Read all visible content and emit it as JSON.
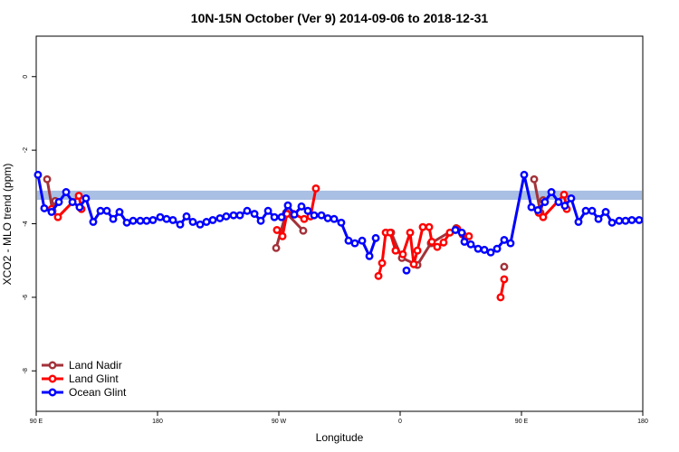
{
  "chart_data": {
    "type": "line",
    "title": "10N-15N October (Ver 9)   2014-09-06 to 2018-12-31",
    "x_label": "Longitude",
    "y_label": "XCO2 - MLO trend (ppm)",
    "xlim": [
      90,
      540
    ],
    "ylim": [
      -9.1,
      1.1
    ],
    "xticks": [
      {
        "value": 90,
        "label": "90 E"
      },
      180,
      {
        "value": 270,
        "label": "90 W"
      },
      {
        "value": 360,
        "label": "0"
      },
      {
        "value": 450,
        "label": "90 E"
      },
      180
    ],
    "yticks": [
      -8,
      -6,
      -4,
      -2,
      0
    ],
    "reference_band": {
      "values": [
        -3.35,
        -3.1
      ],
      "color": "#a9bfe3"
    },
    "legend": "bottom-left",
    "series": [
      {
        "name": "Land Nadir",
        "color": "#a3323a",
        "x": [
          98.1,
          102.1,
          104.1,
          null,
          268,
          275.4,
          288.1,
          null,
          353.3,
          361.3,
          372.8,
          382.8,
          401.6,
          null,
          437.2,
          null,
          459.4,
          464.1,
          466.1
        ],
        "values": [
          -2.79,
          -3.65,
          -3.38,
          null,
          -4.66,
          -3.7,
          -4.19,
          null,
          -4.24,
          -4.93,
          -5.12,
          -4.53,
          -4.12,
          null,
          -5.17,
          null,
          -2.79,
          -3.7,
          -3.36
        ]
      },
      {
        "name": "Land Glint",
        "color": "#ff0000",
        "x": [
          101.4,
          106.1,
          121.6,
          123.6,
          null,
          268.6,
          272.7,
          276,
          280.8,
          288.8,
          293.5,
          297.5,
          null,
          343.9,
          346.6,
          349.3,
          352.6,
          356.6,
          362,
          367.4,
          370.1,
          372.8,
          376.8,
          381.5,
          383.5,
          387.5,
          392.2,
          396.9,
          402.3,
          406.3,
          411,
          null,
          434.5,
          437.2,
          null,
          462.8,
          466.1,
          481.6,
          483.6
        ],
        "values": [
          -3.6,
          -3.82,
          -3.24,
          -3.6,
          null,
          -4.17,
          -4.34,
          -3.73,
          -3.73,
          -3.87,
          -3.8,
          -3.04,
          null,
          -5.42,
          -5.07,
          -4.24,
          -4.24,
          -4.73,
          -4.83,
          -4.24,
          -5.1,
          -4.73,
          -4.09,
          -4.09,
          -4.49,
          -4.63,
          -4.51,
          -4.24,
          -4.14,
          -4.29,
          -4.34,
          null,
          -6.0,
          -5.51,
          null,
          -3.7,
          -3.82,
          -3.21,
          -3.6
        ]
      },
      {
        "name": "Ocean Glint",
        "color": "#0000ff",
        "x": [
          91.3,
          96,
          101.4,
          106.8,
          112.2,
          116.9,
          122.2,
          126.9,
          132.3,
          137.7,
          142.4,
          147.1,
          151.8,
          157.2,
          161.9,
          167.2,
          171.9,
          176.6,
          182,
          186.7,
          191.4,
          196.8,
          201.5,
          206.2,
          211.6,
          216.3,
          221,
          226.3,
          231,
          236.4,
          241.1,
          246.5,
          251.9,
          256.6,
          262,
          266.7,
          272,
          276.7,
          281.5,
          286.8,
          291.5,
          296.2,
          301.6,
          306.3,
          311,
          316.3,
          321.7,
          326.4,
          331.8,
          337.2,
          341.9,
          null,
          364.7,
          null,
          401,
          405.7,
          407.7,
          412.4,
          417.8,
          422.5,
          427.2,
          431.9,
          437.2,
          441.9,
          452,
          457.4,
          462.1,
          467.4,
          472.2,
          477.5,
          482.2,
          486.9,
          492.3,
          497.7,
          502.4,
          507.1,
          512.5,
          517.2,
          522.5,
          527.2,
          531.9,
          537.3
        ],
        "values": [
          -2.67,
          -3.58,
          -3.68,
          -3.41,
          -3.14,
          -3.41,
          -3.55,
          -3.31,
          -3.95,
          -3.65,
          -3.65,
          -3.87,
          -3.68,
          -3.97,
          -3.92,
          -3.92,
          -3.92,
          -3.9,
          -3.82,
          -3.87,
          -3.9,
          -4.02,
          -3.8,
          -3.95,
          -4.02,
          -3.95,
          -3.9,
          -3.85,
          -3.8,
          -3.77,
          -3.77,
          -3.65,
          -3.73,
          -3.92,
          -3.65,
          -3.82,
          -3.82,
          -3.5,
          -3.75,
          -3.53,
          -3.65,
          -3.77,
          -3.77,
          -3.85,
          -3.87,
          -3.97,
          -4.46,
          -4.53,
          -4.46,
          -4.88,
          -4.39,
          null,
          -5.27,
          null,
          -4.17,
          -4.24,
          -4.49,
          -4.56,
          -4.68,
          -4.71,
          -4.78,
          -4.68,
          -4.44,
          -4.53,
          -2.67,
          -3.55,
          -3.63,
          -3.41,
          -3.14,
          -3.41,
          -3.51,
          -3.31,
          -3.95,
          -3.65,
          -3.65,
          -3.87,
          -3.68,
          -3.97,
          -3.92,
          -3.92,
          -3.9,
          -3.9
        ]
      }
    ]
  }
}
